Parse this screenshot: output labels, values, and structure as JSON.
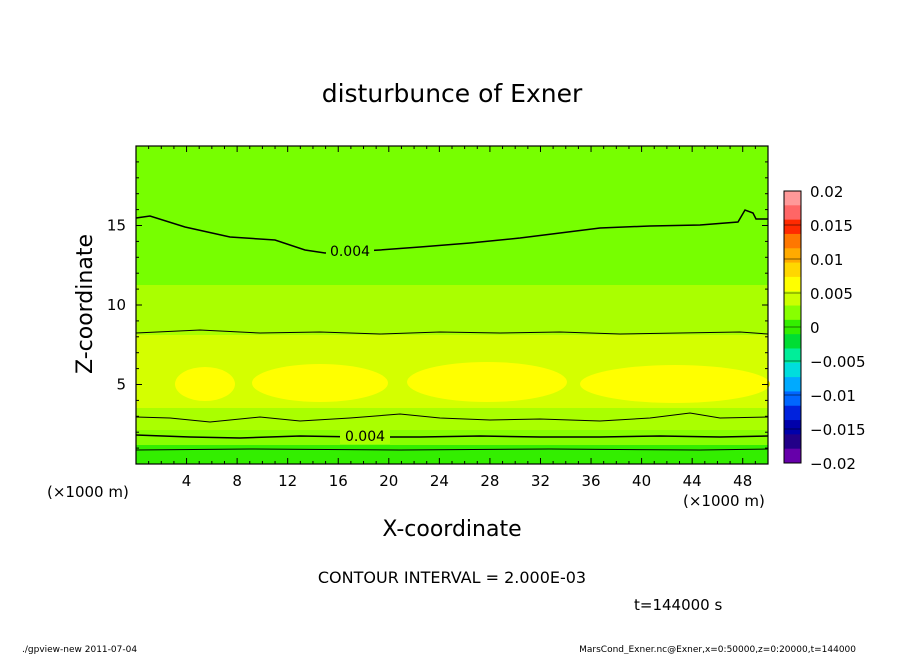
{
  "chart_data": {
    "type": "contour",
    "title": "disturbunce of Exner",
    "xlabel": "X-coordinate",
    "ylabel": "Z-coordinate",
    "x_unit": "(×1000 m)",
    "y_unit": "(×1000 m)",
    "xlim": [
      0,
      50
    ],
    "ylim": [
      0,
      20
    ],
    "x_ticks": [
      4,
      8,
      12,
      16,
      20,
      24,
      28,
      32,
      36,
      40,
      44,
      48
    ],
    "y_ticks": [
      5,
      10,
      15
    ],
    "contour_interval_text": "CONTOUR INTERVAL = 2.000E-03",
    "time_text": "t=144000 s",
    "colorbar": {
      "ticks": [
        "0.02",
        "0.015",
        "0.01",
        "0.005",
        "0",
        "−0.005",
        "−0.01",
        "−0.015",
        "−0.02"
      ],
      "colors": [
        "#ff9999",
        "#ff6666",
        "#ff2a00",
        "#ff7700",
        "#ffaa00",
        "#ffd700",
        "#ffff00",
        "#ccff00",
        "#88ff00",
        "#33ee00",
        "#00dd33",
        "#00ee99",
        "#00dddd",
        "#00aaff",
        "#0066ff",
        "#0022dd",
        "#0000aa",
        "#220088",
        "#6600aa"
      ]
    },
    "contour_lines": [
      {
        "value": 0.004,
        "label": "0.004",
        "z_mean": 14.2
      },
      {
        "value": 0.006,
        "label": "",
        "z_mean": 8.2
      },
      {
        "value": 0.006,
        "label": "",
        "z_mean": 2.9
      },
      {
        "value": 0.004,
        "label": "0.004",
        "z_mean": 1.6
      }
    ]
  },
  "footer": {
    "left": "./gpview-new   2011-07-04",
    "right": "MarsCond_Exner.nc@Exner,x=0:50000,z=0:20000,t=144000"
  }
}
